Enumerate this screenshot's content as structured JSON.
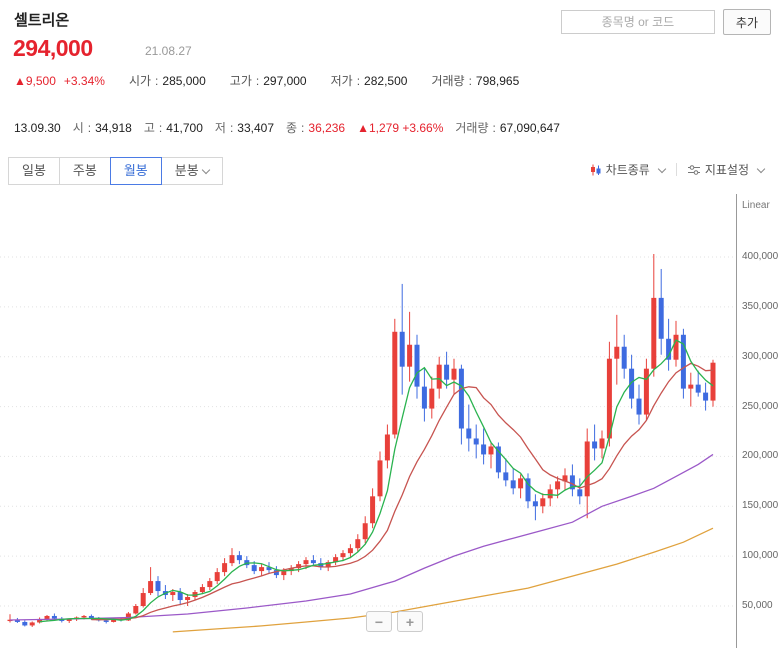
{
  "header": {
    "stock_name": "셀트리온",
    "search_placeholder": "종목명 or 코드",
    "add_button_label": "추가",
    "price": "294,000",
    "date": "21.08.27",
    "change_value": "▲9,500",
    "change_percent": "+3.34%",
    "colon": ":",
    "stats": [
      {
        "label": "시가",
        "value": "285,000"
      },
      {
        "label": "고가",
        "value": "297,000"
      },
      {
        "label": "저가",
        "value": "282,500"
      },
      {
        "label": "거래량",
        "value": "798,965"
      }
    ]
  },
  "info_bar": {
    "date": "13.09.30",
    "colon": ":",
    "open_label": "시",
    "open": "34,918",
    "high_label": "고",
    "high": "41,700",
    "low_label": "저",
    "low": "33,407",
    "close_label": "종",
    "close": "36,236",
    "change": "▲1,279 +3.66%",
    "volume_label": "거래량",
    "volume": "67,090,647"
  },
  "toolbar": {
    "tabs": [
      {
        "label": "일봉"
      },
      {
        "label": "주봉"
      },
      {
        "label": "월봉"
      },
      {
        "label": "분봉"
      }
    ],
    "chart_type_label": "차트종류",
    "indicator_label": "지표설정"
  },
  "chart": {
    "scale_label": "Linear",
    "zoom_out_label": "−",
    "zoom_in_label": "+"
  },
  "chart_data": {
    "type": "candlestick",
    "title": "셀트리온 월봉",
    "interval": "monthly",
    "x_range": [
      "2013-09",
      "2021-08"
    ],
    "y_axis": {
      "scale": "Linear",
      "tick_step": 50000,
      "ticks": [
        400000,
        350000,
        300000,
        250000,
        200000,
        150000,
        100000,
        50000
      ]
    },
    "up_color": "#e8403a",
    "down_color": "#3e6be0",
    "first_candle_note": "first candle matches info bar: O 34,918 H 41,700 L 33,407 C 36,236",
    "candles_ohlc": [
      [
        34918,
        41700,
        33407,
        36236
      ],
      [
        36236,
        38000,
        33000,
        34000
      ],
      [
        34000,
        35500,
        29500,
        30500
      ],
      [
        30500,
        34500,
        29000,
        33500
      ],
      [
        33500,
        38500,
        32500,
        37000
      ],
      [
        37000,
        41000,
        35500,
        40000
      ],
      [
        40000,
        42500,
        36000,
        37500
      ],
      [
        37500,
        39000,
        33500,
        35000
      ],
      [
        35000,
        37500,
        33000,
        36500
      ],
      [
        36500,
        39500,
        35000,
        38500
      ],
      [
        38500,
        41000,
        36500,
        40000
      ],
      [
        40000,
        41500,
        36000,
        37500
      ],
      [
        37500,
        39000,
        34500,
        35500
      ],
      [
        35500,
        37000,
        32500,
        34000
      ],
      [
        34000,
        37500,
        33500,
        36500
      ],
      [
        36500,
        38500,
        34500,
        35500
      ],
      [
        35500,
        44000,
        35000,
        42500
      ],
      [
        42500,
        52000,
        41500,
        50000
      ],
      [
        50000,
        68000,
        48500,
        63000
      ],
      [
        63000,
        89000,
        61000,
        75000
      ],
      [
        75000,
        80000,
        60000,
        65000
      ],
      [
        65000,
        71000,
        57000,
        61000
      ],
      [
        61000,
        67000,
        55000,
        64000
      ],
      [
        64000,
        68000,
        52000,
        56000
      ],
      [
        56000,
        62000,
        50000,
        59000
      ],
      [
        59000,
        66000,
        56000,
        64000
      ],
      [
        64000,
        72000,
        62000,
        69000
      ],
      [
        69000,
        78000,
        66000,
        75000
      ],
      [
        75000,
        88000,
        72000,
        84000
      ],
      [
        84000,
        98000,
        80000,
        93000
      ],
      [
        93000,
        108000,
        90000,
        101000
      ],
      [
        101000,
        105000,
        92000,
        96000
      ],
      [
        96000,
        100000,
        88000,
        91000
      ],
      [
        91000,
        95000,
        82000,
        85000
      ],
      [
        85000,
        92000,
        80000,
        89000
      ],
      [
        89000,
        94000,
        83000,
        86000
      ],
      [
        86000,
        90000,
        78000,
        81000
      ],
      [
        81000,
        88000,
        76000,
        85000
      ],
      [
        85000,
        91000,
        81000,
        88000
      ],
      [
        88000,
        95000,
        84000,
        92000
      ],
      [
        92000,
        99000,
        87000,
        96000
      ],
      [
        96000,
        101000,
        90000,
        93000
      ],
      [
        93000,
        98000,
        86000,
        89000
      ],
      [
        89000,
        96000,
        85000,
        94000
      ],
      [
        94000,
        102000,
        91000,
        99000
      ],
      [
        99000,
        106000,
        95000,
        103000
      ],
      [
        103000,
        112000,
        98000,
        108000
      ],
      [
        108000,
        122000,
        104000,
        117000
      ],
      [
        117000,
        140000,
        113000,
        133000
      ],
      [
        133000,
        168000,
        128000,
        160000
      ],
      [
        160000,
        205000,
        155000,
        196000
      ],
      [
        196000,
        232000,
        188000,
        222000
      ],
      [
        222000,
        338000,
        218000,
        325000
      ],
      [
        325000,
        373000,
        262000,
        290000
      ],
      [
        290000,
        345000,
        275000,
        312000
      ],
      [
        312000,
        322000,
        258000,
        270000
      ],
      [
        270000,
        288000,
        235000,
        248000
      ],
      [
        248000,
        280000,
        238000,
        268000
      ],
      [
        268000,
        300000,
        258000,
        292000
      ],
      [
        292000,
        305000,
        268000,
        277000
      ],
      [
        277000,
        298000,
        262000,
        288000
      ],
      [
        288000,
        292000,
        212000,
        228000
      ],
      [
        228000,
        252000,
        205000,
        218000
      ],
      [
        218000,
        232000,
        198000,
        212000
      ],
      [
        212000,
        228000,
        192000,
        202000
      ],
      [
        202000,
        215000,
        188000,
        210000
      ],
      [
        210000,
        214000,
        178000,
        184000
      ],
      [
        184000,
        198000,
        170000,
        176000
      ],
      [
        176000,
        188000,
        162000,
        168000
      ],
      [
        168000,
        182000,
        158000,
        178000
      ],
      [
        178000,
        183000,
        148000,
        155000
      ],
      [
        155000,
        162000,
        136000,
        150000
      ],
      [
        150000,
        163000,
        143000,
        158000
      ],
      [
        158000,
        172000,
        150000,
        167000
      ],
      [
        167000,
        180000,
        158000,
        175000
      ],
      [
        175000,
        188000,
        166000,
        181000
      ],
      [
        181000,
        192000,
        160000,
        167000
      ],
      [
        167000,
        178000,
        152000,
        160000
      ],
      [
        160000,
        228000,
        138000,
        215000
      ],
      [
        215000,
        232000,
        196000,
        208000
      ],
      [
        208000,
        226000,
        198000,
        218000
      ],
      [
        218000,
        315000,
        210000,
        298000
      ],
      [
        298000,
        342000,
        272000,
        310000
      ],
      [
        310000,
        322000,
        278000,
        288000
      ],
      [
        288000,
        302000,
        248000,
        258000
      ],
      [
        258000,
        272000,
        232000,
        242000
      ],
      [
        242000,
        298000,
        236000,
        288000
      ],
      [
        288000,
        403000,
        280000,
        359000
      ],
      [
        359000,
        388000,
        302000,
        318000
      ],
      [
        318000,
        338000,
        286000,
        297000
      ],
      [
        297000,
        336000,
        290000,
        322000
      ],
      [
        322000,
        328000,
        258000,
        268000
      ],
      [
        268000,
        284000,
        250000,
        272000
      ],
      [
        272000,
        286000,
        260000,
        264000
      ],
      [
        264000,
        274000,
        246000,
        256000
      ],
      [
        256000,
        297000,
        250000,
        294000
      ]
    ],
    "moving_averages": [
      {
        "name": "ma-short",
        "color": "#2ab34f",
        "type": "sma",
        "window": 5
      },
      {
        "name": "ma-mid",
        "color": "#c75450",
        "type": "sma",
        "window": 12
      },
      {
        "name": "ma-long",
        "color": "#9b59c8",
        "type": "points",
        "points": [
          [
            0,
            36000
          ],
          [
            8,
            37000
          ],
          [
            16,
            38500
          ],
          [
            24,
            42000
          ],
          [
            32,
            48000
          ],
          [
            40,
            55000
          ],
          [
            46,
            62000
          ],
          [
            52,
            75000
          ],
          [
            56,
            88000
          ],
          [
            60,
            100000
          ],
          [
            64,
            110000
          ],
          [
            68,
            118000
          ],
          [
            72,
            126000
          ],
          [
            76,
            134000
          ],
          [
            80,
            150000
          ],
          [
            84,
            160000
          ],
          [
            87,
            168000
          ],
          [
            90,
            180000
          ],
          [
            93,
            192000
          ],
          [
            95,
            202000
          ]
        ]
      },
      {
        "name": "ma-longest",
        "color": "#e0a23e",
        "type": "points",
        "points": [
          [
            22,
            24000
          ],
          [
            28,
            27000
          ],
          [
            34,
            30000
          ],
          [
            40,
            34000
          ],
          [
            46,
            38000
          ],
          [
            52,
            44000
          ],
          [
            58,
            52000
          ],
          [
            64,
            60000
          ],
          [
            70,
            68000
          ],
          [
            76,
            80000
          ],
          [
            82,
            92000
          ],
          [
            87,
            104000
          ],
          [
            91,
            114000
          ],
          [
            95,
            128000
          ]
        ]
      }
    ]
  }
}
